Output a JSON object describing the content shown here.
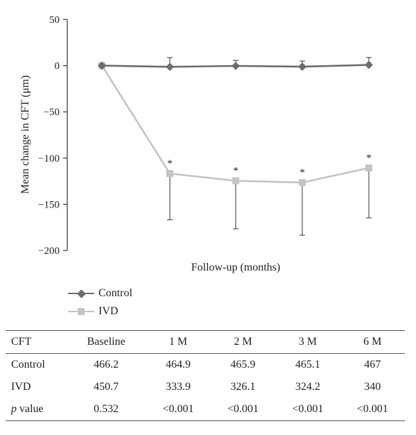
{
  "chart_data": {
    "type": "line",
    "x": [
      0,
      1,
      2,
      3,
      6
    ],
    "categories": [
      "Baseline",
      "1M",
      "2M",
      "3M",
      "6M"
    ],
    "xlabel": "Follow-up (months)",
    "ylabel": "Mean change in CFT (μm)",
    "ylim": [
      -200,
      50
    ],
    "yticks": [
      50,
      0,
      -50,
      -100,
      -150,
      -200
    ],
    "grid": false,
    "legend_position": "bottom-left",
    "series": [
      {
        "name": "Control",
        "color": "#6d6d6d",
        "marker": "diamond",
        "values": [
          0,
          -1.3,
          -0.3,
          -1.1,
          0.8
        ],
        "error_up": [
          0,
          10,
          6,
          6,
          8
        ],
        "error_down": [
          0,
          0,
          0,
          0,
          0
        ]
      },
      {
        "name": "IVD",
        "color": "#c4c4c4",
        "marker": "square",
        "values": [
          0,
          -116.8,
          -124.6,
          -126.5,
          -110.7
        ],
        "error_up": [
          0,
          0,
          0,
          0,
          0
        ],
        "error_down": [
          0,
          50,
          52,
          57,
          54
        ],
        "annotations": [
          "",
          "*",
          "*",
          "*",
          "*"
        ]
      }
    ]
  },
  "legend": {
    "control_label": "Control",
    "ivd_label": "IVD"
  },
  "table": {
    "headers": [
      "CFT",
      "Baseline",
      "1 M",
      "2 M",
      "3 M",
      "6 M"
    ],
    "rows": [
      {
        "label": "Control",
        "cells": [
          "466.2",
          "464.9",
          "465.9",
          "465.1",
          "467"
        ]
      },
      {
        "label": "IVD",
        "cells": [
          "450.7",
          "333.9",
          "326.1",
          "324.2",
          "340"
        ]
      },
      {
        "label_italic": "p",
        "label_rest": " value",
        "cells": [
          "0.532",
          "<0.001",
          "<0.001",
          "<0.001",
          "<0.001"
        ]
      }
    ]
  }
}
